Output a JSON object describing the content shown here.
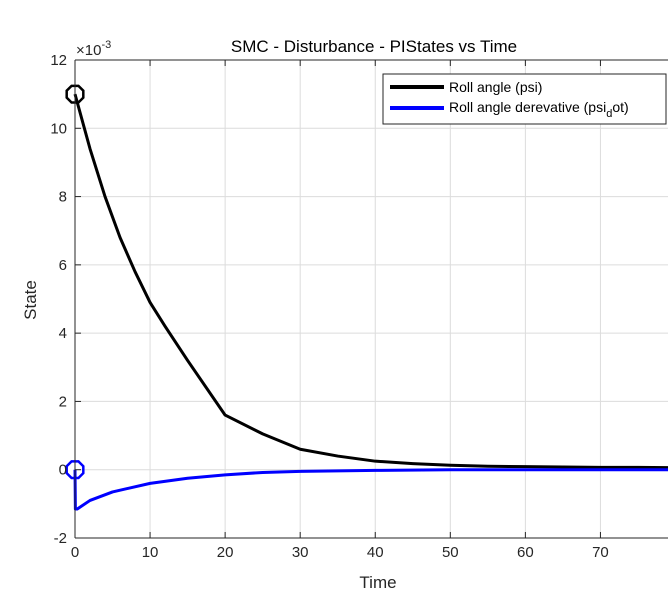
{
  "chart_data": {
    "type": "line",
    "title": "SMC - Disturbance - PIStates vs Time",
    "xlabel": "Time",
    "ylabel": "State",
    "exponent_label": "×10",
    "exponent_power": "-3",
    "xlim": [
      0,
      79
    ],
    "ylim": [
      -2,
      12
    ],
    "xticks": [
      0,
      10,
      20,
      30,
      40,
      50,
      60,
      70
    ],
    "yticks": [
      -2,
      0,
      2,
      4,
      6,
      8,
      10,
      12
    ],
    "grid": true,
    "legend_position": "top-right",
    "series": [
      {
        "name": "Roll angle (psi)",
        "color": "#000000",
        "x": [
          0,
          2,
          4,
          6,
          8,
          10,
          12,
          15,
          20,
          25,
          30,
          35,
          40,
          45,
          50,
          55,
          60,
          65,
          70,
          75,
          79
        ],
        "y": [
          11.0,
          9.4,
          8.0,
          6.8,
          5.8,
          4.9,
          4.2,
          3.2,
          1.6,
          1.05,
          0.6,
          0.4,
          0.25,
          0.18,
          0.13,
          0.1,
          0.09,
          0.08,
          0.07,
          0.07,
          0.06
        ],
        "start_marker": "circle"
      },
      {
        "name": "Roll angle derevative (psi_dot)",
        "color": "#0000ff",
        "x": [
          0,
          0.05,
          0.3,
          2,
          5,
          10,
          15,
          20,
          25,
          30,
          40,
          50,
          60,
          70,
          79
        ],
        "y": [
          0.0,
          -1.15,
          -1.15,
          -0.9,
          -0.65,
          -0.4,
          -0.25,
          -0.15,
          -0.08,
          -0.05,
          -0.02,
          0.0,
          0.0,
          0.0,
          0.0
        ],
        "start_marker": "circle"
      }
    ]
  },
  "legend": {
    "entry1_text": "Roll angle (psi)",
    "entry2_main": "Roll angle derevative (psi",
    "entry2_sub": "d",
    "entry2_tail": "ot)"
  }
}
